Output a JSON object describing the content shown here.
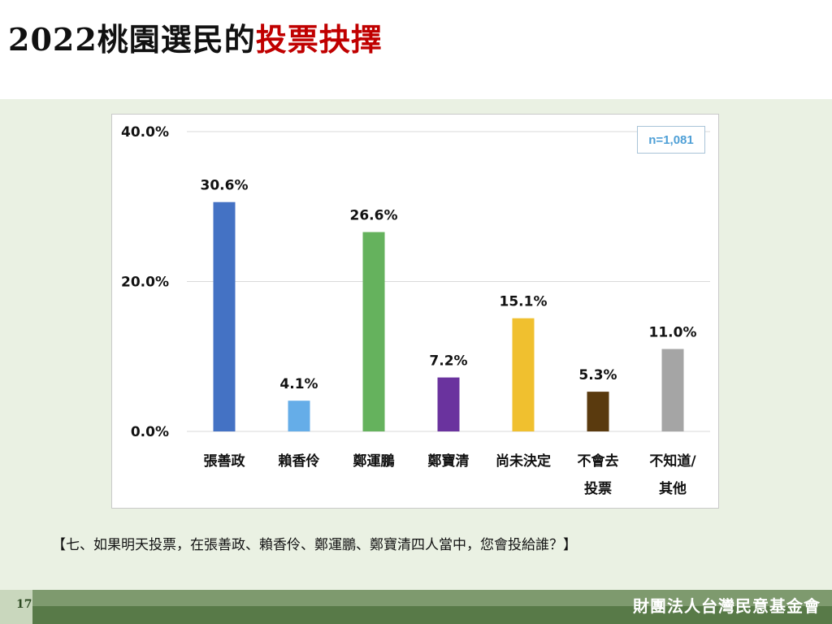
{
  "header": {
    "title_prefix": "2022桃園選民的",
    "title_accent": "投票抉擇"
  },
  "sample_note": "n=1,081",
  "question": "【七、如果明天投票，在張善政、賴香伶、鄭運鵬、鄭寶清四人當中，您會投給誰？】",
  "footer": {
    "page_number": "17",
    "organization": "財團法人台灣民意基金會"
  },
  "colors": {
    "title_accent": "#c00000",
    "panel_background": "#eaf1e3",
    "footer_green": "#587a48"
  },
  "chart_data": {
    "type": "bar",
    "categories": [
      [
        "張善政"
      ],
      [
        "賴香伶"
      ],
      [
        "鄭運鵬"
      ],
      [
        "鄭寶清"
      ],
      [
        "尚未決定"
      ],
      [
        "不會去",
        "投票"
      ],
      [
        "不知道/",
        "其他"
      ]
    ],
    "values": [
      30.6,
      4.1,
      26.6,
      7.2,
      15.1,
      5.3,
      11.0
    ],
    "value_labels": [
      "30.6%",
      "4.1%",
      "26.6%",
      "7.2%",
      "15.1%",
      "5.3%",
      "11.0%"
    ],
    "bar_colors": [
      "#4472c4",
      "#65ade8",
      "#65b25d",
      "#6a339e",
      "#f0c02f",
      "#5a3a0e",
      "#a5a5a5"
    ],
    "y_ticks": [
      0,
      20,
      40
    ],
    "y_tick_labels": [
      "0.0%",
      "20.0%",
      "40.0%"
    ],
    "ylim": [
      0,
      40
    ],
    "grid": true,
    "legend": false
  }
}
